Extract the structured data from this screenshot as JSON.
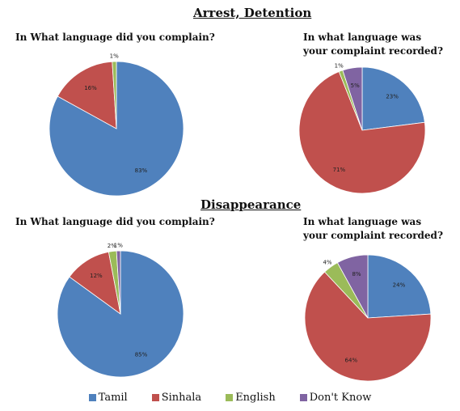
{
  "sections": [
    {
      "title": "Arrest, Detention"
    },
    {
      "title": "Disappearance"
    }
  ],
  "colors": {
    "Tamil": "#4f81bd",
    "Sinhala": "#c0504d",
    "English": "#9bbb59",
    "Don't Know": "#8064a2"
  },
  "legend": [
    {
      "label": "Tamil",
      "color": "#4f81bd"
    },
    {
      "label": "Sinhala",
      "color": "#c0504d"
    },
    {
      "label": "English",
      "color": "#9bbb59"
    },
    {
      "label": "Don't Know",
      "color": "#8064a2"
    }
  ],
  "chart_data": [
    {
      "type": "pie",
      "section": "Arrest, Detention",
      "title": "In What language did you complain?",
      "categories": [
        "Tamil",
        "Sinhala",
        "English"
      ],
      "values": [
        83,
        16,
        1
      ],
      "labels": [
        "83%",
        "16%",
        "1%"
      ]
    },
    {
      "type": "pie",
      "section": "Arrest, Detention",
      "title": "In what language was your complaint recorded?",
      "categories": [
        "Tamil",
        "Sinhala",
        "English",
        "Don't Know"
      ],
      "values": [
        23,
        71,
        1,
        5
      ],
      "labels": [
        "23%",
        "71%",
        "1%",
        "5%"
      ]
    },
    {
      "type": "pie",
      "section": "Disappearance",
      "title": "In What language did you complain?",
      "categories": [
        "Tamil",
        "Sinhala",
        "English",
        "Don't Know"
      ],
      "values": [
        85,
        12,
        2,
        1
      ],
      "labels": [
        "85%",
        "12%",
        "2%",
        "1%"
      ]
    },
    {
      "type": "pie",
      "section": "Disappearance",
      "title": "In what language was your complaint recorded?",
      "categories": [
        "Tamil",
        "Sinhala",
        "English",
        "Don't Know"
      ],
      "values": [
        24,
        64,
        4,
        8
      ],
      "labels": [
        "24%",
        "64%",
        "4%",
        "8%"
      ]
    }
  ]
}
